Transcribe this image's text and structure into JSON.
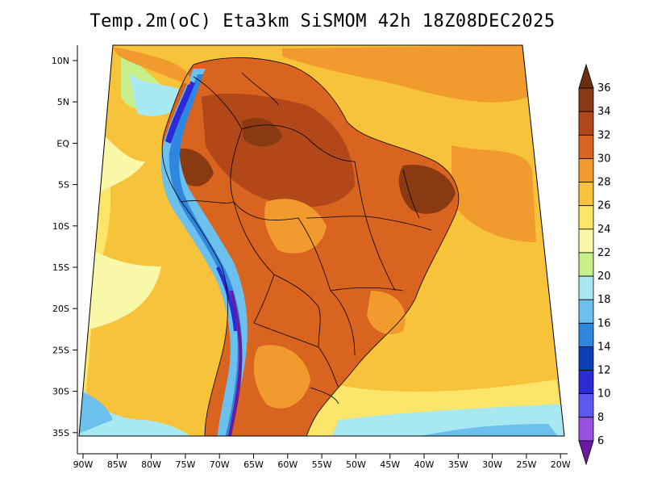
{
  "title": "Temp.2m(oC) Eta3km SiSMOM 42h 18Z08DEC2025",
  "lat_labels": [
    "10N",
    "5N",
    "EQ",
    "5S",
    "10S",
    "15S",
    "20S",
    "25S",
    "30S",
    "35S"
  ],
  "lon_labels": [
    "90W",
    "85W",
    "80W",
    "75W",
    "70W",
    "65W",
    "60W",
    "55W",
    "50W",
    "45W",
    "40W",
    "35W",
    "30W",
    "25W",
    "20W"
  ],
  "colorbar": {
    "labels": [
      "36",
      "34",
      "32",
      "30",
      "28",
      "26",
      "24",
      "22",
      "20",
      "18",
      "16",
      "14",
      "12",
      "10",
      "8",
      "6"
    ],
    "colors": [
      "#6b2f0e",
      "#8a3a12",
      "#b2481a",
      "#d9641f",
      "#f19a2e",
      "#f7c33a",
      "#fbe66a",
      "#f8f8a8",
      "#c8f08a",
      "#a8e8f0",
      "#6cc0ee",
      "#2e86de",
      "#0a3fb8",
      "#2a2ad6",
      "#5a5aee",
      "#9a50e0",
      "#6a1aa0"
    ]
  },
  "colors": {
    "ocean_warm": "#f7c33a",
    "ocean_mid": "#fbe66a",
    "ocean_cool": "#f8f8a8",
    "ocean_cold": "#c8f08a",
    "ocean_colder": "#a8e8f0",
    "land_hot": "#d9641f",
    "land_hotter": "#b2481a",
    "land_hottest": "#8a3a12",
    "andes_cold": "#2e86de",
    "andes_colder": "#2a2ad6",
    "andes_coldest": "#6a1aa0"
  }
}
